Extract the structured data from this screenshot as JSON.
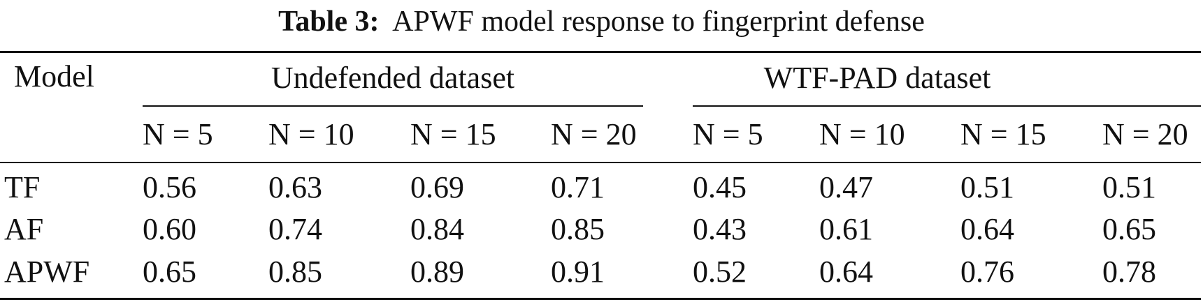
{
  "caption": {
    "label": "Table 3:",
    "text": "APWF model response to fingerprint defense"
  },
  "table": {
    "row_header": "Model",
    "groups": [
      "Undefended dataset",
      "WTF-PAD dataset"
    ],
    "columns": [
      "N = 5",
      "N = 10",
      "N = 15",
      "N = 20",
      "N = 5",
      "N = 10",
      "N = 15",
      "N = 20"
    ],
    "rows": [
      [
        "TF",
        "0.56",
        "0.63",
        "0.69",
        "0.71",
        "0.45",
        "0.47",
        "0.51",
        "0.51"
      ],
      [
        "AF",
        "0.60",
        "0.74",
        "0.84",
        "0.85",
        "0.43",
        "0.61",
        "0.64",
        "0.65"
      ],
      [
        "APWF",
        "0.65",
        "0.85",
        "0.89",
        "0.91",
        "0.52",
        "0.64",
        "0.76",
        "0.78"
      ]
    ]
  }
}
